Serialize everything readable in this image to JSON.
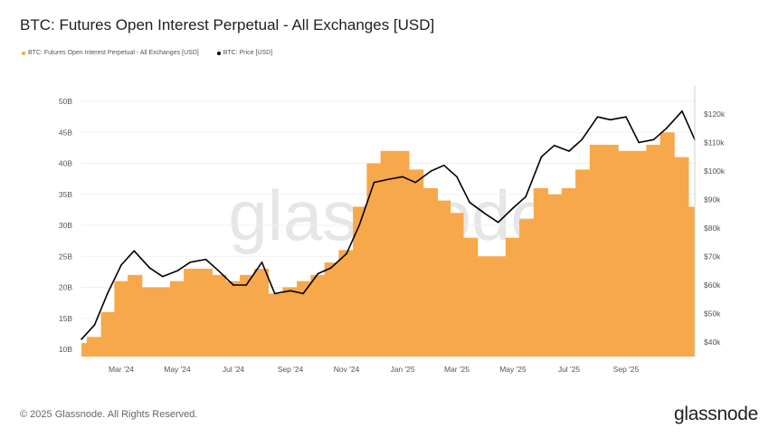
{
  "title": "BTC: Futures Open Interest Perpetual - All Exchanges [USD]",
  "footer": "© 2025 Glassnode. All Rights Reserved.",
  "logo": "glassnode",
  "watermark": "glassnode",
  "chart_data": {
    "type": "bar+line",
    "title": "BTC: Futures Open Interest Perpetual - All Exchanges [USD]",
    "legend_placement": "top-left",
    "grid": true,
    "x_ticks": [
      "Mar '24",
      "May '24",
      "Jul '24",
      "Sep '24",
      "Nov '24",
      "Jan '25",
      "Mar '25",
      "May '25",
      "Jul '25",
      "Sep '25"
    ],
    "y_left": {
      "ticks": [
        "10B",
        "15B",
        "20B",
        "25B",
        "30B",
        "35B",
        "40B",
        "45B",
        "50B"
      ],
      "range": [
        9,
        52
      ]
    },
    "y_right": {
      "ticks": [
        "$40k",
        "$50k",
        "$60k",
        "$70k",
        "$80k",
        "$90k",
        "$100k",
        "$110k",
        "$120k"
      ],
      "range": [
        37,
        128
      ]
    },
    "dates": [
      "2024-01-15",
      "2024-02-01",
      "2024-02-15",
      "2024-03-01",
      "2024-03-15",
      "2024-04-01",
      "2024-04-15",
      "2024-05-01",
      "2024-05-15",
      "2024-06-01",
      "2024-06-15",
      "2024-07-01",
      "2024-07-15",
      "2024-08-01",
      "2024-08-15",
      "2024-09-01",
      "2024-09-15",
      "2024-10-01",
      "2024-10-15",
      "2024-11-01",
      "2024-11-15",
      "2024-12-01",
      "2024-12-15",
      "2025-01-01",
      "2025-01-15",
      "2025-02-01",
      "2025-02-15",
      "2025-03-01",
      "2025-03-15",
      "2025-04-01",
      "2025-04-15",
      "2025-05-01",
      "2025-05-15",
      "2025-06-01",
      "2025-06-15",
      "2025-07-01",
      "2025-07-15",
      "2025-08-01",
      "2025-08-15",
      "2025-09-01",
      "2025-09-15",
      "2025-10-01",
      "2025-10-15",
      "2025-11-01",
      "2025-11-15"
    ],
    "series": [
      {
        "name": "BTC: Futures Open Interest Perpetual - All Exchanges [USD]",
        "type": "bar",
        "axis": "left",
        "unit": "B USD",
        "color": "#f7a84a",
        "values": [
          11,
          12,
          16,
          21,
          22,
          20,
          20,
          21,
          23,
          23,
          22,
          21,
          22,
          23,
          19,
          20,
          21,
          22,
          24,
          26,
          33,
          40,
          42,
          42,
          39,
          36,
          34,
          32,
          28,
          25,
          25,
          28,
          31,
          36,
          35,
          36,
          39,
          43,
          43,
          42,
          42,
          43,
          45,
          41,
          33
        ]
      },
      {
        "name": "BTC: Price [USD]",
        "type": "line",
        "axis": "right",
        "unit": "k USD",
        "color": "#000000",
        "values": [
          41,
          46,
          57,
          67,
          72,
          66,
          63,
          65,
          68,
          69,
          65,
          60,
          60,
          68,
          57,
          58,
          57,
          64,
          66,
          71,
          81,
          96,
          97,
          98,
          96,
          100,
          102,
          98,
          89,
          85,
          82,
          87,
          91,
          105,
          109,
          107,
          111,
          119,
          118,
          119,
          110,
          111,
          115,
          121,
          111
        ]
      }
    ]
  }
}
